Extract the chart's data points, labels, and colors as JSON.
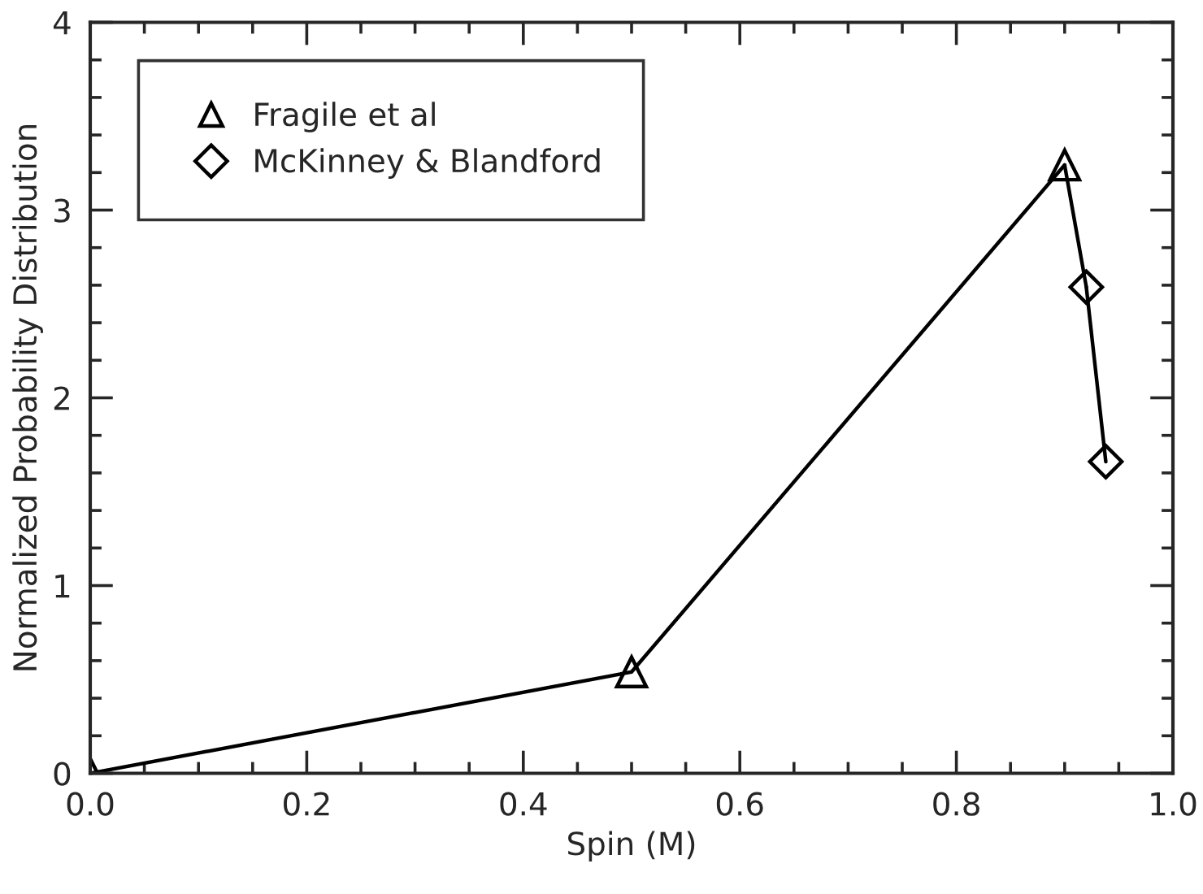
{
  "chart_data": {
    "type": "line",
    "xlabel": "Spin (M)",
    "ylabel": "Normalized Probability Distribution",
    "xlim": [
      0,
      1
    ],
    "xticks": [
      {
        "value": 0,
        "label": "0.0"
      },
      0.2,
      0.4,
      0.6,
      0.8,
      {
        "value": 1,
        "label": "1.0"
      }
    ],
    "ylim": [
      0,
      4
    ],
    "yticks": [
      0,
      1,
      2,
      3,
      4
    ],
    "grid": false,
    "legend": "top left",
    "series": [
      {
        "name": "Fragile et al",
        "color": "#000000",
        "marker": "triangle",
        "x": [
          0,
          0.5,
          0.9
        ],
        "values": [
          0,
          0.54,
          3.24
        ]
      },
      {
        "color": "#000000",
        "x": [
          0.9,
          0.92
        ],
        "values": [
          3.24,
          2.59
        ]
      },
      {
        "name": "McKinney & Blandford",
        "color": "#000000",
        "marker": "diamond",
        "x": [
          0.92,
          0.938
        ],
        "values": [
          2.59,
          1.66
        ]
      }
    ]
  }
}
